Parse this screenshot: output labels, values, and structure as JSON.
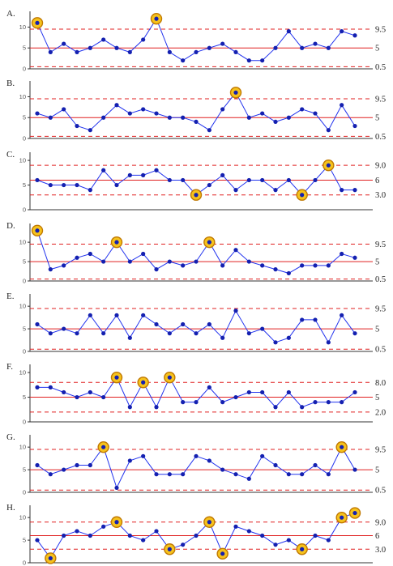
{
  "colors": {
    "line": "#2233ee",
    "point": "#1420b0",
    "center_line": "#e02020",
    "limit_line": "#e02020",
    "highlight_fill": "#f6c21c",
    "highlight_stroke": "#c07800",
    "axis": "#333333"
  },
  "chart_data": [
    {
      "type": "line",
      "panel": "A.",
      "ylim": [
        0,
        13
      ],
      "yticks": [
        "0",
        "5",
        "10"
      ],
      "ref_labels": [
        "9.5",
        "5",
        "0.5"
      ],
      "ref_values": [
        9.5,
        5,
        0.5
      ],
      "values": [
        11,
        4,
        6,
        4,
        5,
        7,
        5,
        4,
        7,
        12,
        4,
        2,
        4,
        5,
        6,
        4,
        2,
        2,
        5,
        9,
        5,
        6,
        5,
        9,
        8
      ],
      "highlighted": [
        0,
        9
      ]
    },
    {
      "type": "line",
      "panel": "B.",
      "ylim": [
        0,
        13
      ],
      "yticks": [
        "0",
        "5",
        "10"
      ],
      "ref_labels": [
        "9.5",
        "5",
        "0.5"
      ],
      "ref_values": [
        9.5,
        5,
        0.5
      ],
      "values": [
        6,
        5,
        7,
        3,
        2,
        5,
        8,
        6,
        7,
        6,
        5,
        5,
        4,
        2,
        7,
        11,
        5,
        6,
        4,
        5,
        7,
        6,
        2,
        8,
        3
      ],
      "highlighted": [
        15
      ]
    },
    {
      "type": "line",
      "panel": "C.",
      "ylim": [
        0,
        11
      ],
      "yticks": [
        "0",
        "5",
        "10"
      ],
      "ref_labels": [
        "9.0",
        "6",
        "3.0"
      ],
      "ref_values": [
        9,
        6,
        3
      ],
      "values": [
        6,
        5,
        5,
        5,
        4,
        8,
        5,
        7,
        7,
        8,
        6,
        6,
        3,
        5,
        7,
        4,
        6,
        6,
        4,
        6,
        3,
        6,
        9,
        4,
        4
      ],
      "highlighted": [
        12,
        20,
        22
      ]
    },
    {
      "type": "line",
      "panel": "D.",
      "ylim": [
        0,
        14
      ],
      "yticks": [
        "0",
        "5",
        "10"
      ],
      "ref_labels": [
        "9.5",
        "5",
        "0.5"
      ],
      "ref_values": [
        9.5,
        5,
        0.5
      ],
      "values": [
        13,
        3,
        4,
        6,
        7,
        5,
        10,
        5,
        7,
        3,
        5,
        4,
        5,
        10,
        4,
        8,
        5,
        4,
        3,
        2,
        4,
        4,
        4,
        7,
        6
      ],
      "highlighted": [
        0,
        6,
        13
      ]
    },
    {
      "type": "line",
      "panel": "E.",
      "ylim": [
        0,
        12
      ],
      "yticks": [
        "0",
        "5",
        "10"
      ],
      "ref_labels": [
        "9.5",
        "5",
        "0.5"
      ],
      "ref_values": [
        9.5,
        5,
        0.5
      ],
      "values": [
        6,
        4,
        5,
        4,
        8,
        4,
        8,
        3,
        8,
        6,
        4,
        6,
        4,
        6,
        3,
        9,
        4,
        5,
        2,
        3,
        7,
        7,
        2,
        8,
        4
      ],
      "highlighted": []
    },
    {
      "type": "line",
      "panel": "F.",
      "ylim": [
        0,
        11
      ],
      "yticks": [
        "0",
        "5",
        "10"
      ],
      "ref_labels": [
        "8.0",
        "5",
        "2.0"
      ],
      "ref_values": [
        8,
        5,
        2
      ],
      "values": [
        7,
        7,
        6,
        5,
        6,
        5,
        9,
        3,
        8,
        3,
        9,
        4,
        4,
        7,
        4,
        5,
        6,
        6,
        3,
        6,
        3,
        4,
        4,
        4,
        6
      ],
      "highlighted": [
        6,
        8,
        10
      ]
    },
    {
      "type": "line",
      "panel": "G.",
      "ylim": [
        0,
        12
      ],
      "yticks": [
        "0",
        "5",
        "10"
      ],
      "ref_labels": [
        "9.5",
        "5",
        "0.5"
      ],
      "ref_values": [
        9.5,
        5,
        0.5
      ],
      "values": [
        6,
        4,
        5,
        6,
        6,
        10,
        1,
        7,
        8,
        4,
        4,
        4,
        8,
        7,
        5,
        4,
        3,
        8,
        6,
        4,
        4,
        6,
        4,
        10,
        5
      ],
      "highlighted": [
        5,
        23
      ]
    },
    {
      "type": "line",
      "panel": "H.",
      "ylim": [
        0,
        12
      ],
      "yticks": [
        "0",
        "5",
        "10"
      ],
      "ref_labels": [
        "9.0",
        "6",
        "3.0"
      ],
      "ref_values": [
        9,
        6,
        3
      ],
      "values": [
        5,
        1,
        6,
        7,
        6,
        8,
        9,
        6,
        5,
        7,
        3,
        4,
        6,
        9,
        2,
        8,
        7,
        6,
        4,
        5,
        3,
        6,
        5,
        10,
        11
      ],
      "highlighted": [
        1,
        6,
        10,
        13,
        14,
        20,
        23,
        24
      ]
    }
  ]
}
